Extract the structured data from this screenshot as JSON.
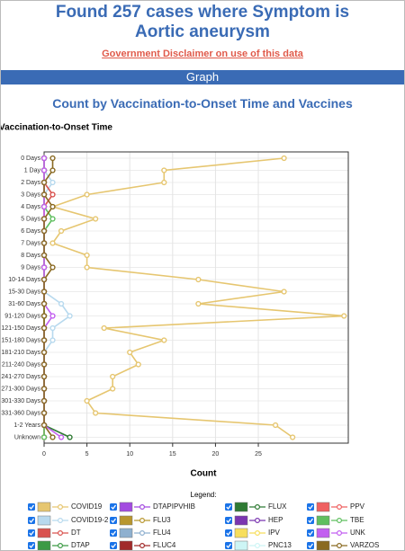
{
  "header": {
    "title": "Found 257 cases where Symptom is Aortic aneurysm",
    "disclaimer": "Government Disclaimer on use of this data",
    "section": "Graph"
  },
  "chart_data": {
    "type": "line",
    "orientation": "horizontal",
    "title": "Count by Vaccination-to-Onset Time and Vaccines",
    "y_label": "Vaccination-to-Onset Time",
    "x_label": "Count",
    "legend_title": "Legend:",
    "categories": [
      "0 Days",
      "1 Day",
      "2 Days",
      "3 Days",
      "4 Days",
      "5 Days",
      "6 Days",
      "7 Days",
      "8 Days",
      "9 Days",
      "10-14 Days",
      "15-30 Days",
      "31-60 Days",
      "91-120 Days",
      "121-150 Days",
      "151-180 Days",
      "181-210 Days",
      "211-240 Days",
      "241-270 Days",
      "271-300 Days",
      "301-330 Days",
      "331-360 Days",
      "1-2 Years",
      "Unknown"
    ],
    "xlim": [
      0,
      35.5
    ],
    "xticks": [
      0,
      5,
      10,
      15,
      20,
      25
    ],
    "grid": true,
    "series": [
      {
        "name": "COVID19",
        "color": "#e6c670",
        "values": [
          28,
          14,
          14,
          5,
          1,
          6,
          2,
          1,
          5,
          5,
          18,
          28,
          18,
          35,
          7,
          14,
          10,
          11,
          8,
          8,
          5,
          6,
          27,
          29
        ]
      },
      {
        "name": "COVID19-2",
        "color": "#b7d9ee",
        "values": [
          0,
          0,
          1,
          0,
          0,
          0,
          0,
          0,
          0,
          0,
          0,
          0,
          2,
          3,
          1,
          1,
          0,
          0,
          0,
          0,
          0,
          0,
          0,
          0
        ]
      },
      {
        "name": "DT",
        "color": "#d9534f",
        "values": [
          0,
          0,
          0,
          1,
          0,
          0,
          0,
          0,
          0,
          0,
          0,
          0,
          0,
          0,
          0,
          0,
          0,
          0,
          0,
          0,
          0,
          0,
          0,
          0
        ]
      },
      {
        "name": "DTAP",
        "color": "#3c9a45",
        "values": [
          0,
          0,
          0,
          0,
          0,
          0,
          0,
          0,
          0,
          0,
          0,
          0,
          0,
          0,
          0,
          0,
          0,
          0,
          0,
          0,
          0,
          0,
          0,
          0
        ]
      },
      {
        "name": "DTAPIPVHIB",
        "color": "#a34be0",
        "values": [
          0,
          0,
          0,
          0,
          0,
          0,
          0,
          0,
          0,
          0,
          0,
          0,
          0,
          0,
          0,
          0,
          0,
          0,
          0,
          0,
          0,
          0,
          0,
          0
        ]
      },
      {
        "name": "FLU3",
        "color": "#b8962e",
        "values": [
          0,
          0,
          0,
          0,
          0,
          0,
          0,
          0,
          0,
          0,
          0,
          0,
          0,
          0,
          0,
          0,
          0,
          0,
          0,
          0,
          0,
          0,
          0,
          0
        ]
      },
      {
        "name": "FLU4",
        "color": "#8fb0cf",
        "values": [
          0,
          0,
          0,
          0,
          0,
          0,
          0,
          0,
          0,
          0,
          0,
          0,
          0,
          0,
          0,
          0,
          0,
          0,
          0,
          0,
          0,
          0,
          0,
          0
        ]
      },
      {
        "name": "FLUC4",
        "color": "#a12a2a",
        "values": [
          0,
          0,
          0,
          0,
          0,
          0,
          0,
          0,
          0,
          0,
          0,
          0,
          0,
          0,
          0,
          0,
          0,
          0,
          0,
          0,
          0,
          0,
          0,
          0
        ]
      },
      {
        "name": "FLUX",
        "color": "#2f7a34",
        "values": [
          0,
          0,
          0,
          0,
          0,
          0,
          0,
          0,
          0,
          0,
          0,
          0,
          0,
          0,
          0,
          0,
          0,
          0,
          0,
          0,
          0,
          0,
          0,
          3
        ]
      },
      {
        "name": "HEP",
        "color": "#7a35b0",
        "values": [
          0,
          0,
          0,
          0,
          0,
          0,
          0,
          0,
          0,
          0,
          0,
          0,
          0,
          0,
          0,
          0,
          0,
          0,
          0,
          0,
          0,
          0,
          0,
          0
        ]
      },
      {
        "name": "IPV",
        "color": "#f7de5c",
        "values": [
          0,
          0,
          0,
          0,
          0,
          0,
          0,
          0,
          0,
          0,
          0,
          0,
          0,
          0,
          0,
          0,
          0,
          0,
          0,
          0,
          0,
          0,
          0,
          0
        ]
      },
      {
        "name": "PNC13",
        "color": "#cdf5f5",
        "values": [
          0,
          0,
          0,
          0,
          0,
          0,
          0,
          0,
          0,
          0,
          0,
          0,
          0,
          0,
          0,
          0,
          0,
          0,
          0,
          0,
          0,
          0,
          0,
          0
        ]
      },
      {
        "name": "PPV",
        "color": "#ef6060",
        "values": [
          0,
          0,
          0,
          0,
          0,
          0,
          0,
          0,
          0,
          0,
          0,
          0,
          0,
          0,
          0,
          0,
          0,
          0,
          0,
          0,
          0,
          0,
          0,
          0
        ]
      },
      {
        "name": "TBE",
        "color": "#5fbf5f",
        "values": [
          0,
          0,
          0,
          0,
          0,
          1,
          0,
          0,
          0,
          0,
          0,
          0,
          0,
          0,
          0,
          0,
          0,
          0,
          0,
          0,
          0,
          0,
          0,
          0
        ]
      },
      {
        "name": "UNK",
        "color": "#c25ff0",
        "values": [
          0,
          0,
          0,
          0,
          0,
          0,
          0,
          0,
          0,
          0,
          0,
          0,
          0,
          1,
          0,
          0,
          0,
          0,
          0,
          0,
          0,
          0,
          0,
          2
        ]
      },
      {
        "name": "VARZOS",
        "color": "#8a6a22",
        "values": [
          1,
          1,
          0,
          0,
          1,
          0,
          0,
          0,
          0,
          1,
          0,
          0,
          0,
          0,
          0,
          0,
          0,
          0,
          0,
          0,
          0,
          0,
          0,
          1
        ]
      }
    ]
  }
}
